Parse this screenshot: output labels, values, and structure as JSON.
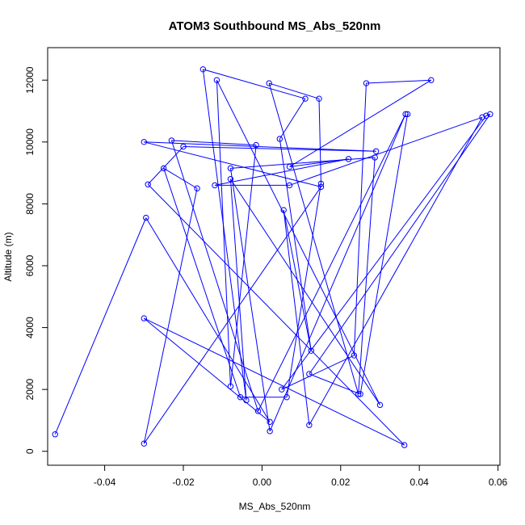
{
  "chart_data": {
    "type": "scatter",
    "connected": true,
    "title": "ATOM3 Southbound MS_Abs_520nm",
    "xlabel": "MS_Abs_520nm",
    "ylabel": "Altitude (m)",
    "xticks": [
      "-0.04",
      "-0.02",
      "0.00",
      "0.02",
      "0.04",
      "0.06"
    ],
    "yticks": [
      "0",
      "2000",
      "4000",
      "6000",
      "8000",
      "10000",
      "12000"
    ],
    "xtick_values": [
      -0.04,
      -0.02,
      0.0,
      0.02,
      0.04,
      0.06
    ],
    "ytick_values": [
      0,
      2000,
      4000,
      6000,
      8000,
      10000,
      12000
    ],
    "xlim": [
      -0.0545,
      0.0605
    ],
    "ylim": [
      -450,
      13050
    ],
    "grid": false,
    "color": "#0000ff",
    "series": [
      {
        "points": [
          [
            -0.0526,
            550
          ],
          [
            -0.0295,
            7550
          ],
          [
            0.002,
            950
          ],
          [
            -0.03,
            4300
          ],
          [
            0.0362,
            200
          ],
          [
            -0.029,
            8630
          ],
          [
            -0.02,
            9850
          ],
          [
            0.029,
            9700
          ],
          [
            -0.03,
            10000
          ],
          [
            0.015,
            8550
          ],
          [
            -0.03,
            250
          ],
          [
            -0.0165,
            8500
          ],
          [
            -0.025,
            9150
          ],
          [
            -0.0055,
            1750
          ],
          [
            0.0063,
            1750
          ],
          [
            0.015,
            8650
          ],
          [
            0.0145,
            11400
          ],
          [
            0.0018,
            11900
          ],
          [
            0.0245,
            1850
          ],
          [
            0.0287,
            9500
          ],
          [
            -0.008,
            9150
          ],
          [
            0.002,
            650
          ],
          [
            0.0365,
            10900
          ],
          [
            -0.001,
            1300
          ],
          [
            -0.023,
            10050
          ],
          [
            -0.0015,
            9900
          ],
          [
            -0.008,
            2100
          ],
          [
            -0.0115,
            12000
          ],
          [
            0.03,
            1500
          ],
          [
            -0.008,
            8800
          ],
          [
            -0.004,
            1650
          ],
          [
            -0.015,
            12350
          ],
          [
            0.011,
            11400
          ],
          [
            0.0045,
            10100
          ],
          [
            0.0125,
            3250
          ],
          [
            0.0055,
            7800
          ],
          [
            0.012,
            850
          ],
          [
            0.056,
            10800
          ],
          [
            0.007,
            8600
          ],
          [
            -0.012,
            8600
          ],
          [
            0.022,
            9450
          ],
          [
            0.007,
            9200
          ],
          [
            0.043,
            12000
          ],
          [
            0.0265,
            11900
          ],
          [
            0.0234,
            3100
          ],
          [
            0.005,
            2000
          ],
          [
            0.057,
            10850
          ],
          [
            0.058,
            10900
          ],
          [
            0.012,
            2500
          ],
          [
            0.025,
            1850
          ],
          [
            0.037,
            10900
          ]
        ]
      }
    ]
  }
}
